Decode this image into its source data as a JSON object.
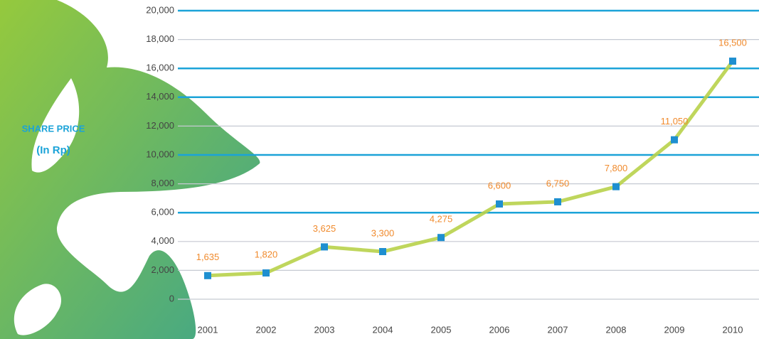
{
  "chart_data": {
    "type": "line",
    "y_label": [
      "SHARE PRICE",
      "(In Rp)"
    ],
    "categories": [
      "2001",
      "2002",
      "2003",
      "2004",
      "2005",
      "2006",
      "2007",
      "2008",
      "2009",
      "2010"
    ],
    "series": [
      {
        "name": "Share price",
        "color": "#b8d14a",
        "marker_color": "#1e8fd0",
        "values": [
          1635,
          1820,
          3625,
          3300,
          4275,
          6600,
          6750,
          7800,
          11050,
          16500
        ],
        "value_labels": [
          "1,635",
          "1,820",
          "3,625",
          "3,300",
          "4,275",
          "6,600",
          "6,750",
          "7,800",
          "11,050",
          "16,500"
        ]
      }
    ],
    "ylim": [
      0,
      20000
    ],
    "yticks": [
      0,
      {
        "value": 2000,
        "label": "2,000"
      },
      {
        "value": 4000,
        "label": "4,000"
      },
      {
        "value": 6000,
        "label": "6,000"
      },
      {
        "value": 8000,
        "label": "8,000"
      },
      {
        "value": 10000,
        "label": "10,000"
      },
      {
        "value": 12000,
        "label": "12,000"
      },
      {
        "value": 14000,
        "label": "14,000"
      },
      {
        "value": 16000,
        "label": "16,000"
      },
      {
        "value": 18000,
        "label": "18,000"
      },
      {
        "value": 20000,
        "label": "20,000"
      }
    ],
    "grid": true,
    "grid_line_colors": [
      "#c5c9d2",
      "#c5c9d2",
      "#c5c9d2",
      "#1ba3d8",
      "#c5c9d2",
      "#1ba3d8",
      "#c5c9d2",
      "#1ba3d8",
      "#1ba3d8",
      "#c5c9d2",
      "#1ba3d8"
    ],
    "label_color": "#f08a2c",
    "y_label_color": "#1ba3d8"
  }
}
